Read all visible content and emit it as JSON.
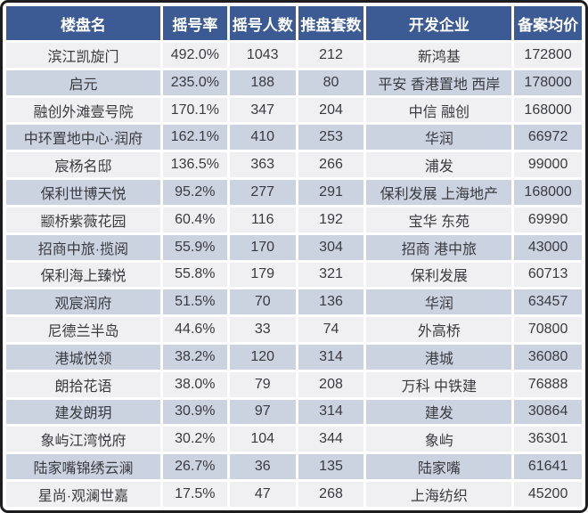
{
  "chart_data": {
    "type": "table",
    "columns": [
      "楼盘名",
      "摇号率",
      "摇号人数",
      "推盘套数",
      "开发企业",
      "备案均价"
    ],
    "rows": [
      [
        "滨江凯旋门",
        "492.0%",
        "1043",
        "212",
        "新鸿基",
        "172800"
      ],
      [
        "启元",
        "235.0%",
        "188",
        "80",
        "平安 香港置地 西岸",
        "178000"
      ],
      [
        "融创外滩壹号院",
        "170.1%",
        "347",
        "204",
        "中信 融创",
        "168000"
      ],
      [
        "中环置地中心·润府",
        "162.1%",
        "410",
        "253",
        "华润",
        "66972"
      ],
      [
        "宸杨名邸",
        "136.5%",
        "363",
        "266",
        "浦发",
        "99000"
      ],
      [
        "保利世博天悦",
        "95.2%",
        "277",
        "291",
        "保利发展 上海地产",
        "168000"
      ],
      [
        "颛桥紫薇花园",
        "60.4%",
        "116",
        "192",
        "宝华 东苑",
        "69990"
      ],
      [
        "招商中旅·揽阅",
        "55.9%",
        "170",
        "304",
        "招商 港中旅",
        "43000"
      ],
      [
        "保利海上臻悦",
        "55.8%",
        "179",
        "321",
        "保利发展",
        "60713"
      ],
      [
        "观宸润府",
        "51.5%",
        "70",
        "136",
        "华润",
        "63457"
      ],
      [
        "尼德兰半岛",
        "44.6%",
        "33",
        "74",
        "外高桥",
        "70800"
      ],
      [
        "港城悦领",
        "38.2%",
        "120",
        "314",
        "港城",
        "36080"
      ],
      [
        "朗拾花语",
        "38.0%",
        "79",
        "208",
        "万科 中铁建",
        "76888"
      ],
      [
        "建发朗玥",
        "30.9%",
        "97",
        "314",
        "建发",
        "30864"
      ],
      [
        "象屿江湾悦府",
        "30.2%",
        "104",
        "344",
        "象屿",
        "36301"
      ],
      [
        "陆家嘴锦绣云澜",
        "26.7%",
        "36",
        "135",
        "陆家嘴",
        "61641"
      ],
      [
        "星尚·观澜世嘉",
        "17.5%",
        "47",
        "268",
        "上海纺织",
        "45200"
      ]
    ],
    "layout": {
      "legend": "none",
      "grid": "white-separators",
      "header_position": "top"
    }
  },
  "colors": {
    "header_bg": "#3c5a94",
    "header_text": "#ffffff",
    "row_light_bg": "#f0eff1",
    "row_shaded_bg": "#cbd2e0",
    "body_text": "#3a3b40",
    "frame_border": "#1d1d1f",
    "separator": "#ffffff"
  }
}
